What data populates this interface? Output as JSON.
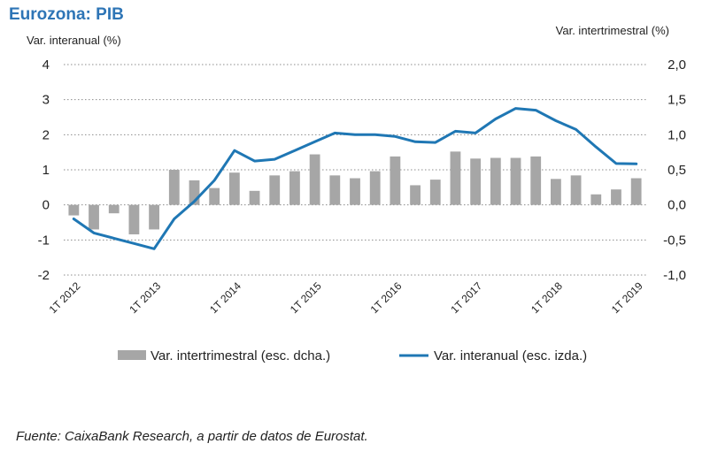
{
  "chart_data": {
    "type": "bar",
    "title": "Eurozona: PIB",
    "ylabel_left": "Var. interanual (%)",
    "ylabel_right": "Var. intertrimestral (%)",
    "ylim_left": [
      -2,
      4
    ],
    "ylim_right": [
      -1.0,
      2.0
    ],
    "left_ticks": [
      "4",
      "3",
      "2",
      "1",
      "0",
      "-1",
      "-2"
    ],
    "right_ticks": [
      "2,0",
      "1,5",
      "1,0",
      "0,5",
      "0,0",
      "-0,5",
      "-1,0"
    ],
    "x_ticks": [
      {
        "index": 0,
        "label": "1T 2012"
      },
      {
        "index": 4,
        "label": "1T 2013"
      },
      {
        "index": 8,
        "label": "1T 2014"
      },
      {
        "index": 12,
        "label": "1T 2015"
      },
      {
        "index": 16,
        "label": "1T 2016"
      },
      {
        "index": 20,
        "label": "1T 2017"
      },
      {
        "index": 24,
        "label": "1T 2018"
      },
      {
        "index": 28,
        "label": "1T 2019"
      }
    ],
    "categories": [
      "1T 2012",
      "2T 2012",
      "3T 2012",
      "4T 2012",
      "1T 2013",
      "2T 2013",
      "3T 2013",
      "4T 2013",
      "1T 2014",
      "2T 2014",
      "3T 2014",
      "4T 2014",
      "1T 2015",
      "2T 2015",
      "3T 2015",
      "4T 2015",
      "1T 2016",
      "2T 2016",
      "3T 2016",
      "4T 2016",
      "1T 2017",
      "2T 2017",
      "3T 2017",
      "4T 2017",
      "1T 2018",
      "2T 2018",
      "3T 2018",
      "4T 2018",
      "1T 2019"
    ],
    "grid": true,
    "legend_position": "bottom",
    "series": [
      {
        "name": "Var. intertrimestral (esc. dcha.)",
        "type": "bar",
        "axis": "right",
        "color": "#a6a6a6",
        "values": [
          -0.15,
          -0.35,
          -0.12,
          -0.42,
          -0.35,
          0.5,
          0.35,
          0.24,
          0.46,
          0.2,
          0.42,
          0.48,
          0.72,
          0.42,
          0.38,
          0.48,
          0.69,
          0.28,
          0.36,
          0.76,
          0.66,
          0.67,
          0.67,
          0.69,
          0.37,
          0.42,
          0.15,
          0.22,
          0.38
        ]
      },
      {
        "name": "Var. interanual (esc. izda.)",
        "type": "line",
        "axis": "left",
        "color": "#1f77b4",
        "values": [
          -0.4,
          -0.8,
          -0.95,
          -1.1,
          -1.25,
          -0.4,
          0.1,
          0.7,
          1.55,
          1.25,
          1.3,
          1.55,
          1.8,
          2.05,
          2.0,
          2.0,
          1.95,
          1.8,
          1.78,
          2.1,
          2.05,
          2.45,
          2.75,
          2.7,
          2.4,
          2.15,
          1.65,
          1.18,
          1.17
        ]
      }
    ]
  },
  "footer": {
    "source": "Fuente: CaixaBank Research, a partir de datos de Eurostat."
  }
}
